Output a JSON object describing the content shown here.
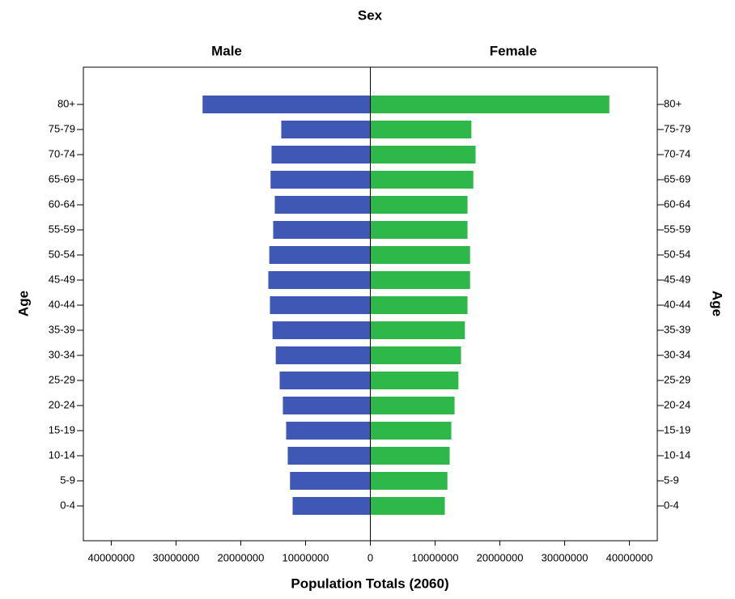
{
  "chart_data": {
    "type": "pyramid",
    "title": "Sex",
    "x_label": "Population Totals (2060)",
    "y_label": "Age",
    "categories": [
      "0-4",
      "5-9",
      "10-14",
      "15-19",
      "20-24",
      "25-29",
      "30-34",
      "35-39",
      "40-44",
      "45-49",
      "50-54",
      "55-59",
      "60-64",
      "65-69",
      "70-74",
      "75-79",
      "80+"
    ],
    "series": [
      {
        "name": "Male",
        "color": "#3f58b5",
        "values": [
          12000000,
          12400000,
          12750000,
          13000000,
          13500000,
          14000000,
          14600000,
          15100000,
          15500000,
          15750000,
          15600000,
          15000000,
          14750000,
          15400000,
          15250000,
          13750000,
          25900000
        ]
      },
      {
        "name": "Female",
        "color": "#2fb84a",
        "values": [
          11500000,
          11900000,
          12250000,
          12500000,
          13000000,
          13600000,
          14000000,
          14600000,
          15000000,
          15400000,
          15400000,
          15000000,
          15000000,
          15900000,
          16250000,
          15600000,
          36900000
        ]
      }
    ],
    "xlim": [
      0,
      44300000
    ],
    "xticks": [
      0,
      10000000,
      20000000,
      30000000,
      40000000
    ]
  }
}
